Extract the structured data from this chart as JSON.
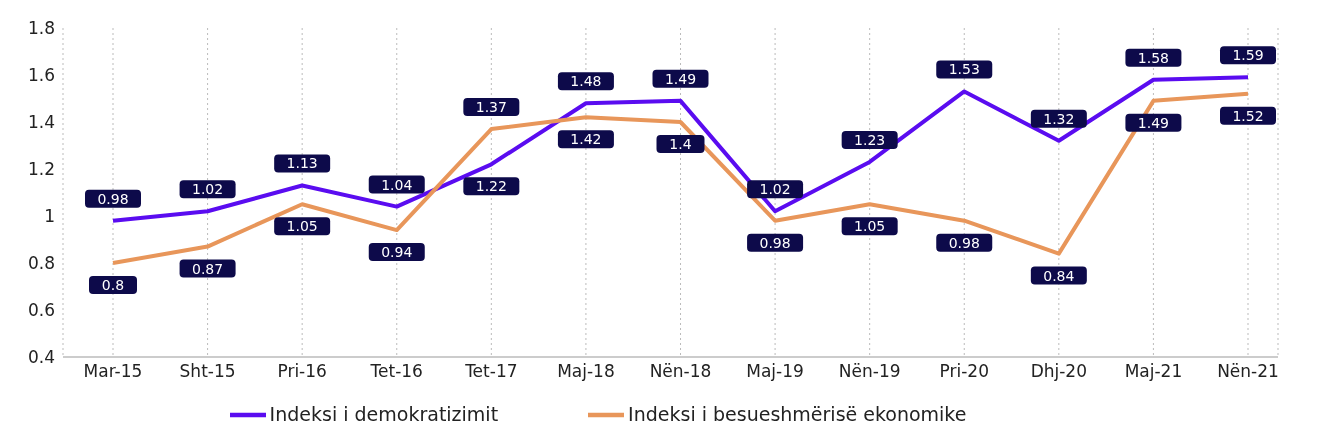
{
  "chart_data": {
    "type": "line",
    "categories": [
      "Mar-15",
      "Sht-15",
      "Pri-16",
      "Tet-16",
      "Tet-17",
      "Maj-18",
      "Nën-18",
      "Maj-19",
      "Nën-19",
      "Pri-20",
      "Dhj-20",
      "Maj-21",
      "Nën-21"
    ],
    "series": [
      {
        "name": "Indeksi i demokratizimit",
        "color": "#5a0cf0",
        "values": [
          0.98,
          1.02,
          1.13,
          1.04,
          1.22,
          1.48,
          1.49,
          1.02,
          1.23,
          1.53,
          1.32,
          1.58,
          1.59
        ]
      },
      {
        "name": "Indeksi i besueshmërisë ekonomike",
        "color": "#e8965a",
        "values": [
          0.8,
          0.87,
          1.05,
          0.94,
          1.37,
          1.42,
          1.4,
          0.98,
          1.05,
          0.98,
          0.84,
          1.49,
          1.52
        ]
      }
    ],
    "ylim": [
      0.4,
      1.8
    ],
    "yticks": [
      0.4,
      0.6,
      0.8,
      1,
      1.2,
      1.4,
      1.6,
      1.8
    ],
    "grid": "x",
    "legend": "bottom",
    "data_labels": true,
    "marker": "none",
    "line_style": "solid"
  }
}
